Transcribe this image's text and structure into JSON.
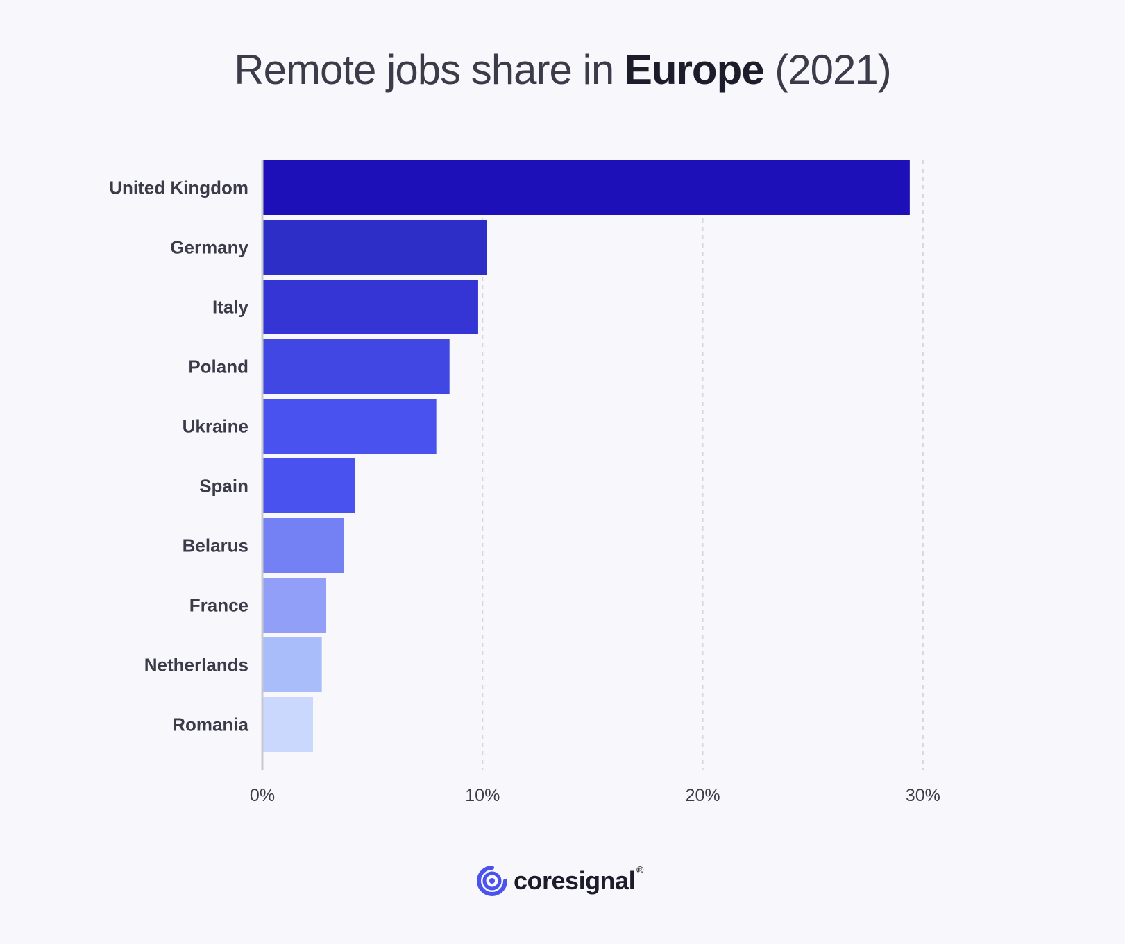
{
  "title": {
    "prefix": "Remote jobs share in ",
    "highlight": "Europe",
    "suffix": " (2021)"
  },
  "chart_data": {
    "type": "bar",
    "orientation": "horizontal",
    "categories": [
      "United Kingdom",
      "Germany",
      "Italy",
      "Poland",
      "Ukraine",
      "Spain",
      "Belarus",
      "France",
      "Netherlands",
      "Romania"
    ],
    "values": [
      29.4,
      10.2,
      9.8,
      8.5,
      7.9,
      4.2,
      3.7,
      2.9,
      2.7,
      2.3
    ],
    "colors": [
      "#1e10b8",
      "#2d2ec8",
      "#3535d6",
      "#4147e2",
      "#4952ee",
      "#4952ee",
      "#7481f5",
      "#919ff8",
      "#aabdfb",
      "#cad8fd"
    ],
    "xlim": [
      0,
      30
    ],
    "xticks": [
      0,
      10,
      20,
      30
    ],
    "xtick_labels": [
      "0%",
      "10%",
      "20%",
      "30%"
    ],
    "grid": "vertical dashed"
  },
  "logo": {
    "text": "coresignal",
    "mark": "®"
  },
  "colors": {
    "background": "#f8f8fc",
    "accent": "#4a53ec",
    "text": "#3b3b4a"
  }
}
